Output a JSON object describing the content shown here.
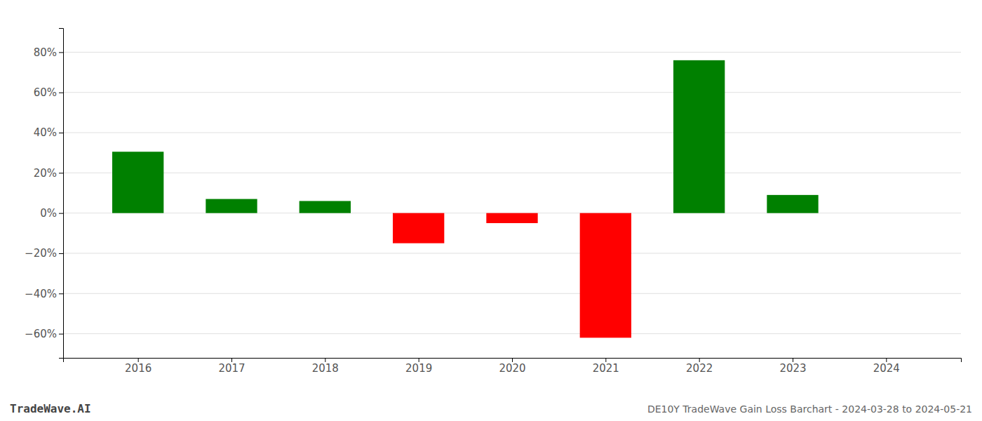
{
  "chart_data": {
    "type": "bar",
    "title": "DE10Y TradeWave Gain Loss Barchart - 2024-03-28 to 2024-05-21",
    "annotations": [
      "TradeWave.AI"
    ],
    "x": [
      2016,
      2017,
      2018,
      2019,
      2020,
      2021,
      2022,
      2023,
      2024
    ],
    "values": [
      0.305,
      0.07,
      0.06,
      -0.15,
      -0.05,
      -0.62,
      0.76,
      0.09,
      0.0
    ],
    "colors": [
      "#008000",
      "#008000",
      "#008000",
      "#ff0000",
      "#ff0000",
      "#ff0000",
      "#008000",
      "#008000",
      "#008000"
    ],
    "xlim": [
      2015.2,
      2024.8
    ],
    "xticks": [
      2016,
      2017,
      2018,
      2019,
      2020,
      2021,
      2022,
      2023,
      2024
    ],
    "ylim": [
      -0.72,
      0.92
    ],
    "yticks": [
      {
        "value": -0.6,
        "label": "−60%"
      },
      {
        "value": -0.4,
        "label": "−40%"
      },
      {
        "value": -0.2,
        "label": "−20%"
      },
      {
        "value": 0.0,
        "label": "0%"
      },
      {
        "value": 0.2,
        "label": "20%"
      },
      {
        "value": 0.4,
        "label": "40%"
      },
      {
        "value": 0.6,
        "label": "60%"
      },
      {
        "value": 0.8,
        "label": "80%"
      }
    ],
    "grid": true
  }
}
